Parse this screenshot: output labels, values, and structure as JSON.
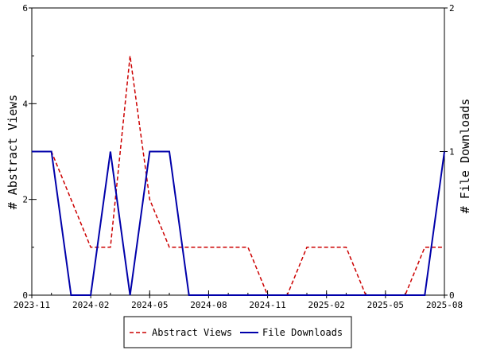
{
  "chart_data": {
    "type": "line",
    "x": [
      "2023-11",
      "2023-12",
      "2024-01",
      "2024-02",
      "2024-03",
      "2024-04",
      "2024-05",
      "2024-06",
      "2024-07",
      "2024-08",
      "2024-09",
      "2024-10",
      "2024-11",
      "2024-12",
      "2025-01",
      "2025-02",
      "2025-03",
      "2025-04",
      "2025-05",
      "2025-06",
      "2025-07",
      "2025-08"
    ],
    "x_ticks": [
      "2023-11",
      "2024-02",
      "2024-05",
      "2024-08",
      "2024-11",
      "2025-02",
      "2025-05",
      "2025-08"
    ],
    "series": [
      {
        "name": "Abstract Views",
        "axis": "left",
        "color": "#cc0000",
        "style": "dashed",
        "values": [
          3,
          3,
          2,
          1,
          1,
          5,
          2,
          1,
          1,
          1,
          1,
          1,
          0,
          0,
          1,
          1,
          1,
          0,
          0,
          0,
          1,
          1
        ]
      },
      {
        "name": "File Downloads",
        "axis": "right",
        "color": "#0000aa",
        "style": "solid",
        "values": [
          1,
          1,
          0,
          0,
          1,
          0,
          1,
          1,
          0,
          0,
          0,
          0,
          0,
          0,
          0,
          0,
          0,
          0,
          0,
          0,
          0,
          1
        ]
      }
    ],
    "ylabel_left": "# Abstract Views",
    "ylabel_right": "# File Downloads",
    "ylim_left": [
      0,
      6
    ],
    "ylim_right": [
      0,
      2
    ],
    "y_ticks_left": [
      "0",
      "2",
      "4",
      "6"
    ],
    "y_ticks_right": [
      "0",
      "1",
      "2"
    ],
    "grid": false,
    "legend_position": "bottom"
  }
}
